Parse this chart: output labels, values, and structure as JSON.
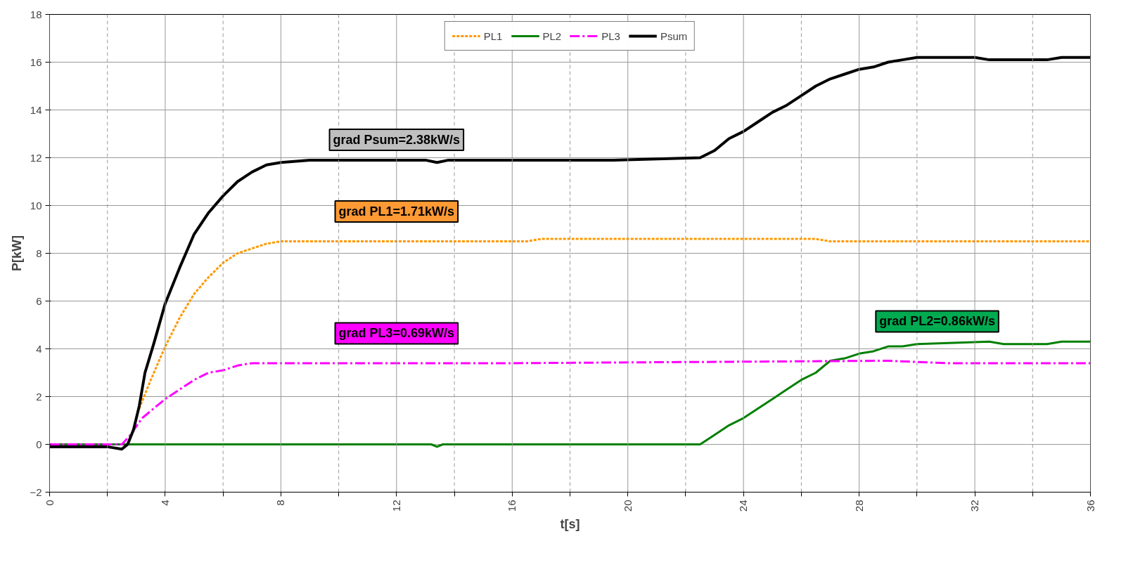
{
  "chart_data": {
    "type": "line",
    "xlabel": "t[s]",
    "ylabel": "P[kW]",
    "xlim": [
      0,
      36
    ],
    "ylim": [
      -2,
      18
    ],
    "xticks": [
      0,
      {
        "value": 2,
        "label": null
      },
      4,
      {
        "value": 6,
        "label": null
      },
      8,
      {
        "value": 10,
        "label": null
      },
      12,
      {
        "value": 14,
        "label": null
      },
      16,
      {
        "value": 18,
        "label": null
      },
      20,
      {
        "value": 22,
        "label": null
      },
      24,
      {
        "value": 26,
        "label": null
      },
      28,
      {
        "value": 30,
        "label": null
      },
      32,
      {
        "value": 34,
        "label": null
      },
      36
    ],
    "yticks": [
      -2,
      0,
      2,
      4,
      6,
      8,
      10,
      12,
      14,
      16,
      18
    ],
    "grid": true,
    "legend": "top",
    "marker": "none",
    "series": [
      {
        "name": "PL1",
        "color": "#ff9900",
        "line_style": "dotted",
        "x": [
          3.1,
          3.5,
          4,
          4.5,
          5,
          5.5,
          6,
          6.5,
          7,
          7.5,
          8,
          16.5,
          17,
          26.5,
          27,
          36
        ],
        "values": [
          1.5,
          2.7,
          4.1,
          5.3,
          6.3,
          7,
          7.6,
          8,
          8.2,
          8.4,
          8.5,
          8.5,
          8.6,
          8.6,
          8.5,
          8.5
        ]
      },
      {
        "name": "PL2",
        "color": "#008000",
        "line_style": "solid",
        "x": [
          0,
          13.2,
          13.4,
          13.6,
          16,
          16.3,
          22.5,
          23,
          23.5,
          24,
          24.5,
          25,
          25.5,
          26,
          26.5,
          27,
          27.5,
          28,
          28.5,
          29,
          29.5,
          30,
          32.5,
          33,
          34.5,
          35,
          36
        ],
        "values": [
          0,
          0,
          -0.1,
          0,
          0,
          0,
          0,
          0.4,
          0.8,
          1.1,
          1.5,
          1.9,
          2.3,
          2.7,
          3,
          3.5,
          3.6,
          3.8,
          3.9,
          4.1,
          4.1,
          4.2,
          4.3,
          4.2,
          4.2,
          4.3,
          4.3
        ]
      },
      {
        "name": "PL3",
        "color": "#ff00ff",
        "line_style": "dashed",
        "x": [
          0,
          2.5,
          2.8,
          3.2,
          3.6,
          4,
          4.5,
          5,
          5.5,
          6,
          6.5,
          7,
          16,
          29,
          31,
          36
        ],
        "values": [
          0,
          0,
          0.4,
          1.1,
          1.5,
          1.9,
          2.3,
          2.7,
          3,
          3.1,
          3.3,
          3.4,
          3.4,
          3.5,
          3.4,
          3.4
        ]
      },
      {
        "name": "Psum",
        "color": "#000000",
        "line_style": "solid",
        "x": [
          0,
          2,
          2.5,
          2.7,
          2.9,
          3.1,
          3.3,
          3.6,
          4,
          4.5,
          5,
          5.5,
          6,
          6.5,
          7,
          7.5,
          8,
          9,
          13,
          13.4,
          13.8,
          16,
          19.5,
          22.5,
          23,
          23.5,
          24,
          24.5,
          25,
          25.5,
          26,
          26.5,
          27,
          27.5,
          28,
          28.5,
          29,
          29.5,
          30,
          32,
          32.5,
          34.5,
          35,
          36
        ],
        "values": [
          -0.1,
          -0.1,
          -0.2,
          0,
          0.6,
          1.6,
          3,
          4.2,
          5.9,
          7.4,
          8.8,
          9.7,
          10.4,
          11,
          11.4,
          11.7,
          11.8,
          11.9,
          11.9,
          11.8,
          11.9,
          11.9,
          11.9,
          12,
          12.3,
          12.8,
          13.1,
          13.5,
          13.9,
          14.2,
          14.6,
          15,
          15.3,
          15.5,
          15.7,
          15.8,
          16,
          16.1,
          16.2,
          16.2,
          16.1,
          16.1,
          16.2,
          16.2
        ]
      }
    ],
    "annotations": [
      "grad Psum=2.38kW/s",
      "grad PL1=1.71kW/s",
      "grad PL3=0.69kW/s",
      "grad PL2=0.86kW/s"
    ]
  }
}
